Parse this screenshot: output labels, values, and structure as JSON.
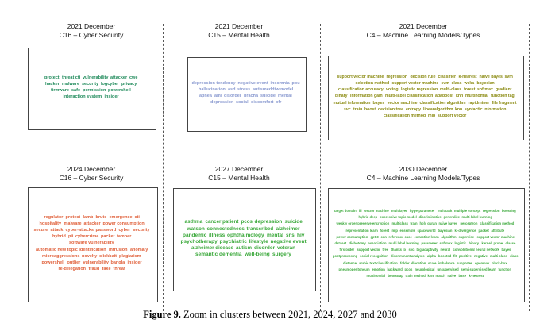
{
  "panels": [
    {
      "year_label": "2021 December",
      "cluster_label": "C16 – Cyber Security",
      "color": "#1e8a5a",
      "words": [
        {
          "t": "protect",
          "s": 5.5
        },
        {
          "t": "threat cti",
          "s": 5.5
        },
        {
          "t": "vulnerability",
          "s": 5.5
        },
        {
          "t": "attacker",
          "s": 5.5
        },
        {
          "t": "cwe",
          "s": 5.5
        },
        {
          "t": "hacker",
          "s": 5.5
        },
        {
          "t": "malware",
          "s": 5.5
        },
        {
          "t": "security",
          "s": 5.5
        },
        {
          "t": "logcyber",
          "s": 5.5
        },
        {
          "t": "privacy",
          "s": 5.5
        },
        {
          "t": "firmware",
          "s": 5.5
        },
        {
          "t": "safe",
          "s": 5.5
        },
        {
          "t": "permission",
          "s": 5.5
        },
        {
          "t": "powershell",
          "s": 5.5
        },
        {
          "t": "interaction system",
          "s": 5.5
        },
        {
          "t": "insider",
          "s": 5.5
        }
      ]
    },
    {
      "year_label": "2021 December",
      "cluster_label": "C15 – Mental Health",
      "color": "#8a9ad0",
      "words": [
        {
          "t": "depression tendency",
          "s": 5.5
        },
        {
          "t": "negative event",
          "s": 5.5
        },
        {
          "t": "insomnia",
          "s": 5.5
        },
        {
          "t": "pou",
          "s": 5.5
        },
        {
          "t": "hallucination",
          "s": 5.5
        },
        {
          "t": "asd",
          "s": 5.5
        },
        {
          "t": "stress",
          "s": 5.5
        },
        {
          "t": "autismeddtw model",
          "s": 5.5
        },
        {
          "t": "apnea",
          "s": 5.5
        },
        {
          "t": "ami",
          "s": 5.5
        },
        {
          "t": "disorder",
          "s": 5.5
        },
        {
          "t": "bracha",
          "s": 5.5
        },
        {
          "t": "suicide",
          "s": 5.5
        },
        {
          "t": "mental",
          "s": 5.5
        },
        {
          "t": "depression",
          "s": 5.5
        },
        {
          "t": "social",
          "s": 5.5
        },
        {
          "t": "discomfort",
          "s": 5.5
        },
        {
          "t": "ofr",
          "s": 5.5
        }
      ]
    },
    {
      "year_label": "2021 December",
      "cluster_label": "C4 – Machine Learning Models/Types",
      "color": "#8a8a10",
      "words": [
        {
          "t": "support vector machine",
          "s": 5.2
        },
        {
          "t": "regression",
          "s": 5.2
        },
        {
          "t": "decision rule",
          "s": 5.2
        },
        {
          "t": "classifier",
          "s": 5.2
        },
        {
          "t": "k-nearest",
          "s": 5.2
        },
        {
          "t": "naive bayes",
          "s": 5.2
        },
        {
          "t": "svm",
          "s": 5.2
        },
        {
          "t": "selection method",
          "s": 5.2
        },
        {
          "t": "support vector machine",
          "s": 5.2
        },
        {
          "t": "svm",
          "s": 5.2
        },
        {
          "t": "class",
          "s": 5.2
        },
        {
          "t": "weka",
          "s": 5.2
        },
        {
          "t": "bayesian",
          "s": 5.2
        },
        {
          "t": "classification accuracy",
          "s": 5.2
        },
        {
          "t": "voting",
          "s": 5.2
        },
        {
          "t": "logistic regression",
          "s": 5.2
        },
        {
          "t": "multi-class",
          "s": 5.2
        },
        {
          "t": "forest",
          "s": 5.2
        },
        {
          "t": "softmax",
          "s": 5.2
        },
        {
          "t": "gradient",
          "s": 5.2
        },
        {
          "t": "binary",
          "s": 5.2
        },
        {
          "t": "information gain",
          "s": 5.2
        },
        {
          "t": "multi-label classification",
          "s": 5.2
        },
        {
          "t": "adaboost",
          "s": 5.2
        },
        {
          "t": "knn",
          "s": 5.2
        },
        {
          "t": "multinomial",
          "s": 5.2
        },
        {
          "t": "function tag",
          "s": 5.2
        },
        {
          "t": "mutual information",
          "s": 5.2
        },
        {
          "t": "bayes",
          "s": 5.2
        },
        {
          "t": "vector machine",
          "s": 5.2
        },
        {
          "t": "classification algorithm",
          "s": 5.2
        },
        {
          "t": "rapidminer",
          "s": 5.2
        },
        {
          "t": "file fragment",
          "s": 5.2
        },
        {
          "t": "svc",
          "s": 5.2
        },
        {
          "t": "train",
          "s": 5.2
        },
        {
          "t": "boost",
          "s": 5.2
        },
        {
          "t": "decision tree",
          "s": 5.2
        },
        {
          "t": "entropy",
          "s": 5.2
        },
        {
          "t": "linearalgorithm",
          "s": 5.2
        },
        {
          "t": "knn",
          "s": 5.2
        },
        {
          "t": "syntactic information",
          "s": 5.2
        },
        {
          "t": "classification method",
          "s": 5.2
        },
        {
          "t": "mlp",
          "s": 5.2
        },
        {
          "t": "support vector",
          "s": 5.2
        }
      ]
    },
    {
      "year_label": "2024 December",
      "cluster_label": "C16 – Cyber Security",
      "color": "#e0603a",
      "words": [
        {
          "t": "regulator",
          "s": 5.5
        },
        {
          "t": "protect",
          "s": 5.5
        },
        {
          "t": "lamb",
          "s": 5.5
        },
        {
          "t": "brute",
          "s": 5.5
        },
        {
          "t": "emergence",
          "s": 5.5
        },
        {
          "t": "cti",
          "s": 5.5
        },
        {
          "t": "hospitality",
          "s": 5.5
        },
        {
          "t": "malware",
          "s": 5.5
        },
        {
          "t": "attacker",
          "s": 5.5
        },
        {
          "t": "power consumption",
          "s": 5.5
        },
        {
          "t": "secure",
          "s": 5.5
        },
        {
          "t": "attack",
          "s": 5.5
        },
        {
          "t": "cyber-attacks",
          "s": 5.5
        },
        {
          "t": "password",
          "s": 5.5
        },
        {
          "t": "cyber",
          "s": 5.5
        },
        {
          "t": "security",
          "s": 5.5
        },
        {
          "t": "hybrid",
          "s": 5.5
        },
        {
          "t": "pii",
          "s": 5.5
        },
        {
          "t": "cybercrime",
          "s": 5.5
        },
        {
          "t": "packet",
          "s": 5.5
        },
        {
          "t": "tamper",
          "s": 5.5
        },
        {
          "t": "software vulnerability",
          "s": 5.5
        },
        {
          "t": "automatic new topic identification",
          "s": 5.5
        },
        {
          "t": "intrusion",
          "s": 5.5
        },
        {
          "t": "anomaly",
          "s": 5.5
        },
        {
          "t": "microaggressions",
          "s": 5.5
        },
        {
          "t": "novelty",
          "s": 5.5
        },
        {
          "t": "clickbait",
          "s": 5.5
        },
        {
          "t": "plagiarism",
          "s": 5.5
        },
        {
          "t": "powershell",
          "s": 5.5
        },
        {
          "t": "outlier",
          "s": 5.5
        },
        {
          "t": "vulnerability",
          "s": 5.5
        },
        {
          "t": "bangla",
          "s": 5.5
        },
        {
          "t": "insider",
          "s": 5.5
        },
        {
          "t": "re-delegation",
          "s": 5.5
        },
        {
          "t": "fraud",
          "s": 5.5
        },
        {
          "t": "fake",
          "s": 5.5
        },
        {
          "t": "threat",
          "s": 5.5
        }
      ]
    },
    {
      "year_label": "2027 December",
      "cluster_label": "C15 – Mental Health",
      "color": "#3aa83a",
      "words": [
        {
          "t": "asthma",
          "s": 6.5
        },
        {
          "t": "cancer patient",
          "s": 6.2
        },
        {
          "t": "pcos",
          "s": 6.2
        },
        {
          "t": "depression",
          "s": 6.5
        },
        {
          "t": "suicide",
          "s": 6.5
        },
        {
          "t": "watson",
          "s": 6.5
        },
        {
          "t": "connectedness",
          "s": 6.5
        },
        {
          "t": "transcribed",
          "s": 6.2
        },
        {
          "t": "alzheimer",
          "s": 6.5
        },
        {
          "t": "pandemic",
          "s": 6.5
        },
        {
          "t": "illness",
          "s": 6.5
        },
        {
          "t": "ophthalmology",
          "s": 6.5
        },
        {
          "t": "mental",
          "s": 6.5
        },
        {
          "t": "sns",
          "s": 6.2
        },
        {
          "t": "hiv",
          "s": 6.5
        },
        {
          "t": "psychotherapy",
          "s": 6.5
        },
        {
          "t": "psychiatric",
          "s": 6.5
        },
        {
          "t": "lifestyle",
          "s": 6.5
        },
        {
          "t": "negative event",
          "s": 6.5
        },
        {
          "t": "alzheimer disease",
          "s": 6.2
        },
        {
          "t": "autism",
          "s": 6.2
        },
        {
          "t": "disorder",
          "s": 6.5
        },
        {
          "t": "veteran",
          "s": 6.5
        },
        {
          "t": "semantic dementia",
          "s": 6.5
        },
        {
          "t": "well-being",
          "s": 6.5
        },
        {
          "t": "surgery",
          "s": 6.5
        }
      ]
    },
    {
      "year_label": "2030 December",
      "cluster_label": "C4 – Machine Learning Models/Types",
      "color": "#3aa83a",
      "words": [
        {
          "t": "target domain",
          "s": 4.2
        },
        {
          "t": "lil",
          "s": 4.2
        },
        {
          "t": "vector machine",
          "s": 4.2
        },
        {
          "t": "multilayer",
          "s": 4.2
        },
        {
          "t": "hyperparameter",
          "s": 4.2
        },
        {
          "t": "multitask",
          "s": 4.2
        },
        {
          "t": "multiple concept",
          "s": 4.2
        },
        {
          "t": "regression",
          "s": 4.2
        },
        {
          "t": "boosting",
          "s": 4.2
        },
        {
          "t": "hybrid deep",
          "s": 4.2
        },
        {
          "t": "expressive topic model",
          "s": 4.2
        },
        {
          "t": "discriminative",
          "s": 4.2
        },
        {
          "t": "generalize",
          "s": 4.2
        },
        {
          "t": "multi-label learning",
          "s": 4.2
        },
        {
          "t": "weakly order preserve encryption",
          "s": 4.2
        },
        {
          "t": "multiclass",
          "s": 4.2
        },
        {
          "t": "train",
          "s": 4.2
        },
        {
          "t": "holy quran",
          "s": 4.2
        },
        {
          "t": "naive bayes",
          "s": 4.2
        },
        {
          "t": "perceptron",
          "s": 4.2
        },
        {
          "t": "classification method",
          "s": 4.2
        },
        {
          "t": "representation learn",
          "s": 4.2
        },
        {
          "t": "forest",
          "s": 4.2
        },
        {
          "t": "mlp",
          "s": 4.2
        },
        {
          "t": "ensemble",
          "s": 4.2
        },
        {
          "t": "spaceworld",
          "s": 4.2
        },
        {
          "t": "bayesian",
          "s": 4.2
        },
        {
          "t": "kl-divergence",
          "s": 4.2
        },
        {
          "t": "packet",
          "s": 4.2
        },
        {
          "t": "attribute",
          "s": 4.2
        },
        {
          "t": "power consumption",
          "s": 4.2
        },
        {
          "t": "gpt-3",
          "s": 4.2
        },
        {
          "t": "cnn",
          "s": 4.2
        },
        {
          "t": "reference case",
          "s": 4.2
        },
        {
          "t": "extraction learn",
          "s": 4.2
        },
        {
          "t": "algorithm",
          "s": 4.2
        },
        {
          "t": "supervise",
          "s": 4.2
        },
        {
          "t": "support vector machine",
          "s": 4.2
        },
        {
          "t": "dataset",
          "s": 4.2
        },
        {
          "t": "dichotomy",
          "s": 4.2
        },
        {
          "t": "association",
          "s": 4.2
        },
        {
          "t": "multi label learning",
          "s": 4.2
        },
        {
          "t": "parameter",
          "s": 4.2
        },
        {
          "t": "softmax",
          "s": 4.2
        },
        {
          "t": "logistic",
          "s": 4.2
        },
        {
          "t": "binary",
          "s": 4.2
        },
        {
          "t": "kernel",
          "s": 4.2
        },
        {
          "t": "prune",
          "s": 4.2
        },
        {
          "t": "classe",
          "s": 4.2
        },
        {
          "t": "firstorder",
          "s": 4.2
        },
        {
          "t": "support vector",
          "s": 4.2
        },
        {
          "t": "tree",
          "s": 4.2
        },
        {
          "t": "thanks to",
          "s": 4.2
        },
        {
          "t": "svc",
          "s": 4.2
        },
        {
          "t": "big adaptivity",
          "s": 4.2
        },
        {
          "t": "neural",
          "s": 4.2
        },
        {
          "t": "convolutional neural network",
          "s": 4.2
        },
        {
          "t": "bayes",
          "s": 4.2
        },
        {
          "t": "postprocessing",
          "s": 4.2
        },
        {
          "t": "social recognition",
          "s": 4.2
        },
        {
          "t": "discriminant analysis",
          "s": 4.2
        },
        {
          "t": "alpha",
          "s": 4.2
        },
        {
          "t": "boosted",
          "s": 4.2
        },
        {
          "t": "fit",
          "s": 4.2
        },
        {
          "t": "positive",
          "s": 4.2
        },
        {
          "t": "negative",
          "s": 4.2
        },
        {
          "t": "multi-class",
          "s": 4.2
        },
        {
          "t": "class",
          "s": 4.2
        },
        {
          "t": "distance",
          "s": 4.2
        },
        {
          "t": "arabic text classification",
          "s": 4.2
        },
        {
          "t": "folder allocation",
          "s": 4.2
        },
        {
          "t": "scale",
          "s": 4.2
        },
        {
          "t": "imbalance",
          "s": 4.2
        },
        {
          "t": "supporter",
          "s": 4.2
        },
        {
          "t": "openmax",
          "s": 4.2
        },
        {
          "t": "black-box",
          "s": 4.2
        },
        {
          "t": "pneumoperitoneum",
          "s": 4.2
        },
        {
          "t": "emotion",
          "s": 4.2
        },
        {
          "t": "backward",
          "s": 4.2
        },
        {
          "t": "pcos",
          "s": 4.2
        },
        {
          "t": "neurological",
          "s": 4.2
        },
        {
          "t": "unsupervised",
          "s": 4.2
        },
        {
          "t": "semi-supervised learn",
          "s": 4.2
        },
        {
          "t": "function",
          "s": 4.2
        },
        {
          "t": "multinomial",
          "s": 4.2
        },
        {
          "t": "bootstrap",
          "s": 4.2
        },
        {
          "t": "train method",
          "s": 4.2
        },
        {
          "t": "knn",
          "s": 4.2
        },
        {
          "t": "match",
          "s": 4.2
        },
        {
          "t": "naive",
          "s": 4.2
        },
        {
          "t": "base",
          "s": 4.2
        },
        {
          "t": "k-nearest",
          "s": 4.2
        }
      ]
    }
  ],
  "caption": {
    "label": "Figure 9.",
    "text": " Zoom in clusters between 2021, 2024, 2027 and 2030"
  }
}
